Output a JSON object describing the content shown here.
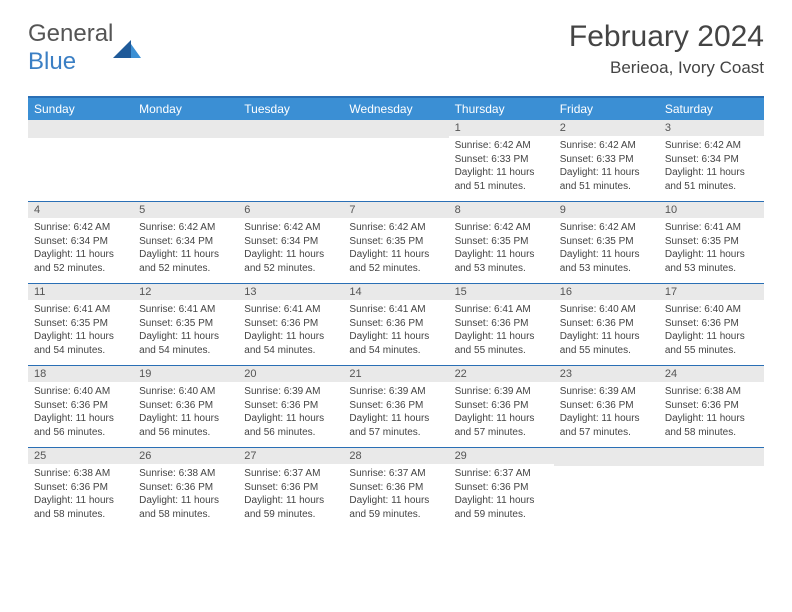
{
  "logo": {
    "text1": "General",
    "text2": "Blue"
  },
  "title": "February 2024",
  "location": "Berieoa, Ivory Coast",
  "colors": {
    "header_bg": "#3b8fd4",
    "border": "#2a6fb5",
    "daynum_bg": "#e9e9e9",
    "logo_blue": "#3b7fc4",
    "text": "#444"
  },
  "weekdays": [
    "Sunday",
    "Monday",
    "Tuesday",
    "Wednesday",
    "Thursday",
    "Friday",
    "Saturday"
  ],
  "weeks": [
    [
      null,
      null,
      null,
      null,
      {
        "n": "1",
        "sr": "6:42 AM",
        "ss": "6:33 PM",
        "dl": "11 hours and 51 minutes."
      },
      {
        "n": "2",
        "sr": "6:42 AM",
        "ss": "6:33 PM",
        "dl": "11 hours and 51 minutes."
      },
      {
        "n": "3",
        "sr": "6:42 AM",
        "ss": "6:34 PM",
        "dl": "11 hours and 51 minutes."
      }
    ],
    [
      {
        "n": "4",
        "sr": "6:42 AM",
        "ss": "6:34 PM",
        "dl": "11 hours and 52 minutes."
      },
      {
        "n": "5",
        "sr": "6:42 AM",
        "ss": "6:34 PM",
        "dl": "11 hours and 52 minutes."
      },
      {
        "n": "6",
        "sr": "6:42 AM",
        "ss": "6:34 PM",
        "dl": "11 hours and 52 minutes."
      },
      {
        "n": "7",
        "sr": "6:42 AM",
        "ss": "6:35 PM",
        "dl": "11 hours and 52 minutes."
      },
      {
        "n": "8",
        "sr": "6:42 AM",
        "ss": "6:35 PM",
        "dl": "11 hours and 53 minutes."
      },
      {
        "n": "9",
        "sr": "6:42 AM",
        "ss": "6:35 PM",
        "dl": "11 hours and 53 minutes."
      },
      {
        "n": "10",
        "sr": "6:41 AM",
        "ss": "6:35 PM",
        "dl": "11 hours and 53 minutes."
      }
    ],
    [
      {
        "n": "11",
        "sr": "6:41 AM",
        "ss": "6:35 PM",
        "dl": "11 hours and 54 minutes."
      },
      {
        "n": "12",
        "sr": "6:41 AM",
        "ss": "6:35 PM",
        "dl": "11 hours and 54 minutes."
      },
      {
        "n": "13",
        "sr": "6:41 AM",
        "ss": "6:36 PM",
        "dl": "11 hours and 54 minutes."
      },
      {
        "n": "14",
        "sr": "6:41 AM",
        "ss": "6:36 PM",
        "dl": "11 hours and 54 minutes."
      },
      {
        "n": "15",
        "sr": "6:41 AM",
        "ss": "6:36 PM",
        "dl": "11 hours and 55 minutes."
      },
      {
        "n": "16",
        "sr": "6:40 AM",
        "ss": "6:36 PM",
        "dl": "11 hours and 55 minutes."
      },
      {
        "n": "17",
        "sr": "6:40 AM",
        "ss": "6:36 PM",
        "dl": "11 hours and 55 minutes."
      }
    ],
    [
      {
        "n": "18",
        "sr": "6:40 AM",
        "ss": "6:36 PM",
        "dl": "11 hours and 56 minutes."
      },
      {
        "n": "19",
        "sr": "6:40 AM",
        "ss": "6:36 PM",
        "dl": "11 hours and 56 minutes."
      },
      {
        "n": "20",
        "sr": "6:39 AM",
        "ss": "6:36 PM",
        "dl": "11 hours and 56 minutes."
      },
      {
        "n": "21",
        "sr": "6:39 AM",
        "ss": "6:36 PM",
        "dl": "11 hours and 57 minutes."
      },
      {
        "n": "22",
        "sr": "6:39 AM",
        "ss": "6:36 PM",
        "dl": "11 hours and 57 minutes."
      },
      {
        "n": "23",
        "sr": "6:39 AM",
        "ss": "6:36 PM",
        "dl": "11 hours and 57 minutes."
      },
      {
        "n": "24",
        "sr": "6:38 AM",
        "ss": "6:36 PM",
        "dl": "11 hours and 58 minutes."
      }
    ],
    [
      {
        "n": "25",
        "sr": "6:38 AM",
        "ss": "6:36 PM",
        "dl": "11 hours and 58 minutes."
      },
      {
        "n": "26",
        "sr": "6:38 AM",
        "ss": "6:36 PM",
        "dl": "11 hours and 58 minutes."
      },
      {
        "n": "27",
        "sr": "6:37 AM",
        "ss": "6:36 PM",
        "dl": "11 hours and 59 minutes."
      },
      {
        "n": "28",
        "sr": "6:37 AM",
        "ss": "6:36 PM",
        "dl": "11 hours and 59 minutes."
      },
      {
        "n": "29",
        "sr": "6:37 AM",
        "ss": "6:36 PM",
        "dl": "11 hours and 59 minutes."
      },
      null,
      null
    ]
  ]
}
